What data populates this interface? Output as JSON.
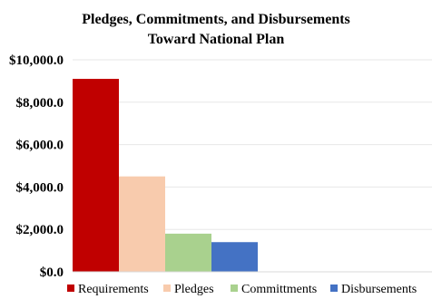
{
  "chart_data": {
    "type": "bar",
    "title": [
      "Pledges, Commitments, and Disbursements",
      "Toward National Plan"
    ],
    "series": [
      {
        "name": "Requirements",
        "value": 9100,
        "color": "#c00000"
      },
      {
        "name": "Pledges",
        "value": 4500,
        "color": "#f8cbad"
      },
      {
        "name": "Committments",
        "value": 1800,
        "color": "#a9d18e"
      },
      {
        "name": "Disbursements",
        "value": 1400,
        "color": "#4472c4"
      }
    ],
    "ylim": [
      0,
      10000
    ],
    "yticks": [
      {
        "value": 0,
        "label": "$0.0"
      },
      {
        "value": 2000,
        "label": "$2,000.0"
      },
      {
        "value": 4000,
        "label": "$4,000.0"
      },
      {
        "value": 6000,
        "label": "$6,000.0"
      },
      {
        "value": 8000,
        "label": "$8,000.0"
      },
      {
        "value": 10000,
        "label": "$10,000.0"
      }
    ],
    "grid": true,
    "legend_position": "bottom"
  }
}
